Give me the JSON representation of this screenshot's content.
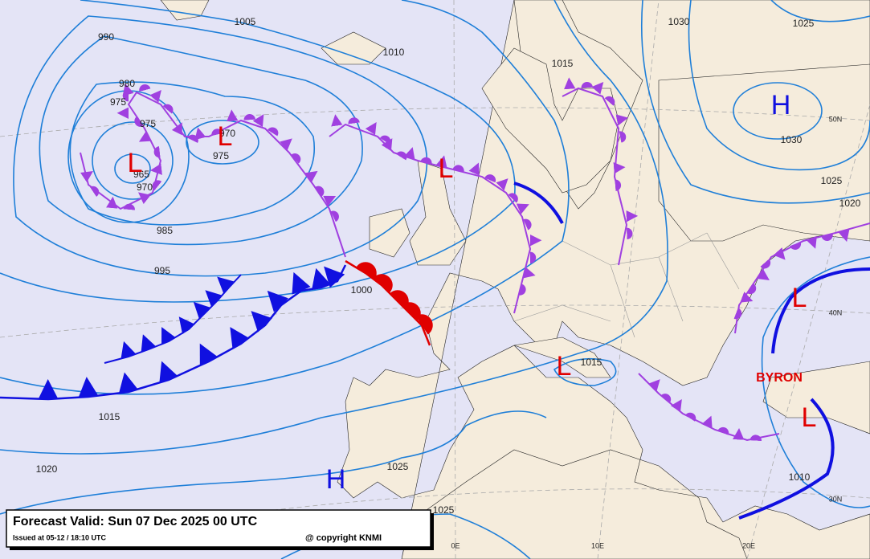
{
  "forecast": {
    "valid": "Forecast Valid:  Sun 07 Dec 2025 00 UTC",
    "issued": "Issued at 05-12 / 18:10 UTC",
    "copyright": "@ copyright KNMI"
  },
  "isobar_labels": [
    "1005",
    "1010",
    "990",
    "980",
    "975",
    "975",
    "970",
    "975",
    "965",
    "970",
    "985",
    "995",
    "1000",
    "1015",
    "1020",
    "1025",
    "1025",
    "1015",
    "1015",
    "1030",
    "1025",
    "1030",
    "1025",
    "1020",
    "1010"
  ],
  "pressure_centers": [
    "L",
    "L",
    "L",
    "L",
    "L",
    "L",
    "H",
    "H"
  ],
  "storm_name": "BYRON",
  "grid_labels": [
    "50N",
    "40N",
    "30N",
    "0E",
    "10E",
    "20E"
  ]
}
